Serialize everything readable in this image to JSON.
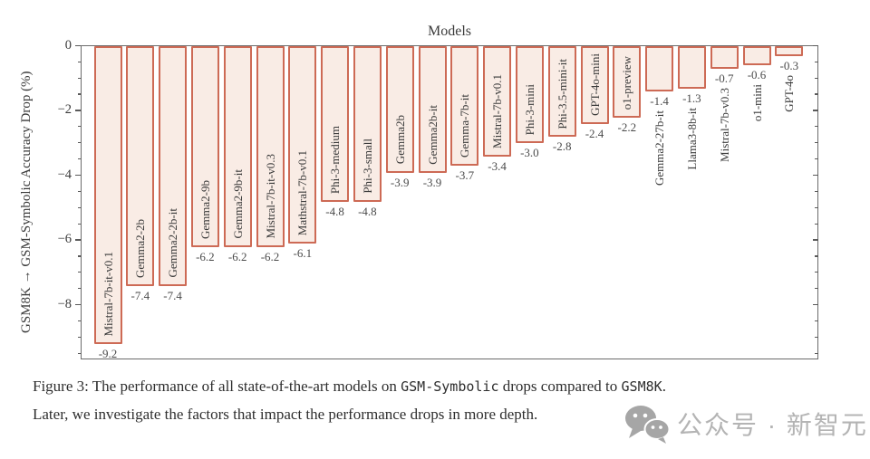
{
  "chart_data": {
    "type": "bar",
    "title": "Models",
    "title_position": "top",
    "ylabel": "GSM8K → GSM-Symbolic Accuracy Drop (%)",
    "categories": [
      "Mistral-7b-it-v0.1",
      "Gemma2-2b",
      "Gemma2-2b-it",
      "Gemma2-9b",
      "Gemma2-9b-it",
      "Mistral-7b-it-v0.3",
      "Mathstral-7b-v0.1",
      "Phi-3-medium",
      "Phi-3-small",
      "Gemma2b",
      "Gemma2b-it",
      "Gemma-7b-it",
      "Mistral-7b-v0.1",
      "Phi-3-mini",
      "Phi-3.5-mini-it",
      "GPT-4o-mini",
      "o1-preview",
      "Gemma2-27b-it",
      "Llama3-8b-it",
      "Mistral-7b-v0.3",
      "o1-mini",
      "GPT-4o"
    ],
    "values": [
      -9.2,
      -7.4,
      -7.4,
      -6.2,
      -6.2,
      -6.2,
      -6.1,
      -4.8,
      -4.8,
      -3.9,
      -3.9,
      -3.7,
      -3.4,
      -3.0,
      -2.8,
      -2.4,
      -2.2,
      -1.4,
      -1.3,
      -0.7,
      -0.6,
      -0.3
    ],
    "value_labels": [
      "-9.2",
      "-7.4",
      "-7.4",
      "-6.2",
      "-6.2",
      "-6.2",
      "-6.1",
      "-4.8",
      "-4.8",
      "-3.9",
      "-3.9",
      "-3.7",
      "-3.4",
      "-3.0",
      "-2.8",
      "-2.4",
      "-2.2",
      "-1.4",
      "-1.3",
      "-0.7",
      "-0.6",
      "-0.3"
    ],
    "ylim": [
      -9.7,
      0
    ],
    "y_major_ticks": [
      {
        "value": 0,
        "label": "0"
      },
      {
        "value": -2,
        "label": "−2"
      },
      {
        "value": -4,
        "label": "−4"
      },
      {
        "value": -6,
        "label": "−6"
      },
      {
        "value": -8,
        "label": "−8"
      }
    ],
    "y_minor_tick_step": 0.5,
    "grid": false,
    "legend": null,
    "bar_fill_color": "#f9ece5",
    "bar_border_color": "#cd6a55",
    "label_inside_min_abs_value": 2.0
  },
  "caption": {
    "lines": [
      [
        {
          "t": "Figure 3: The performance of all state-of-the-art models on ",
          "mono": false
        },
        {
          "t": "GSM-Symbolic",
          "mono": true
        },
        {
          "t": " drops compared to ",
          "mono": false
        },
        {
          "t": "GSM8K",
          "mono": true
        },
        {
          "t": ".",
          "mono": false
        }
      ],
      [
        {
          "t": "Later, we investigate the factors that impact the performance drops in more depth.",
          "mono": false
        }
      ]
    ]
  },
  "watermark": {
    "icon": "wechat-icon",
    "text": "公众号 · 新智元",
    "color": "#b4b4b4"
  }
}
